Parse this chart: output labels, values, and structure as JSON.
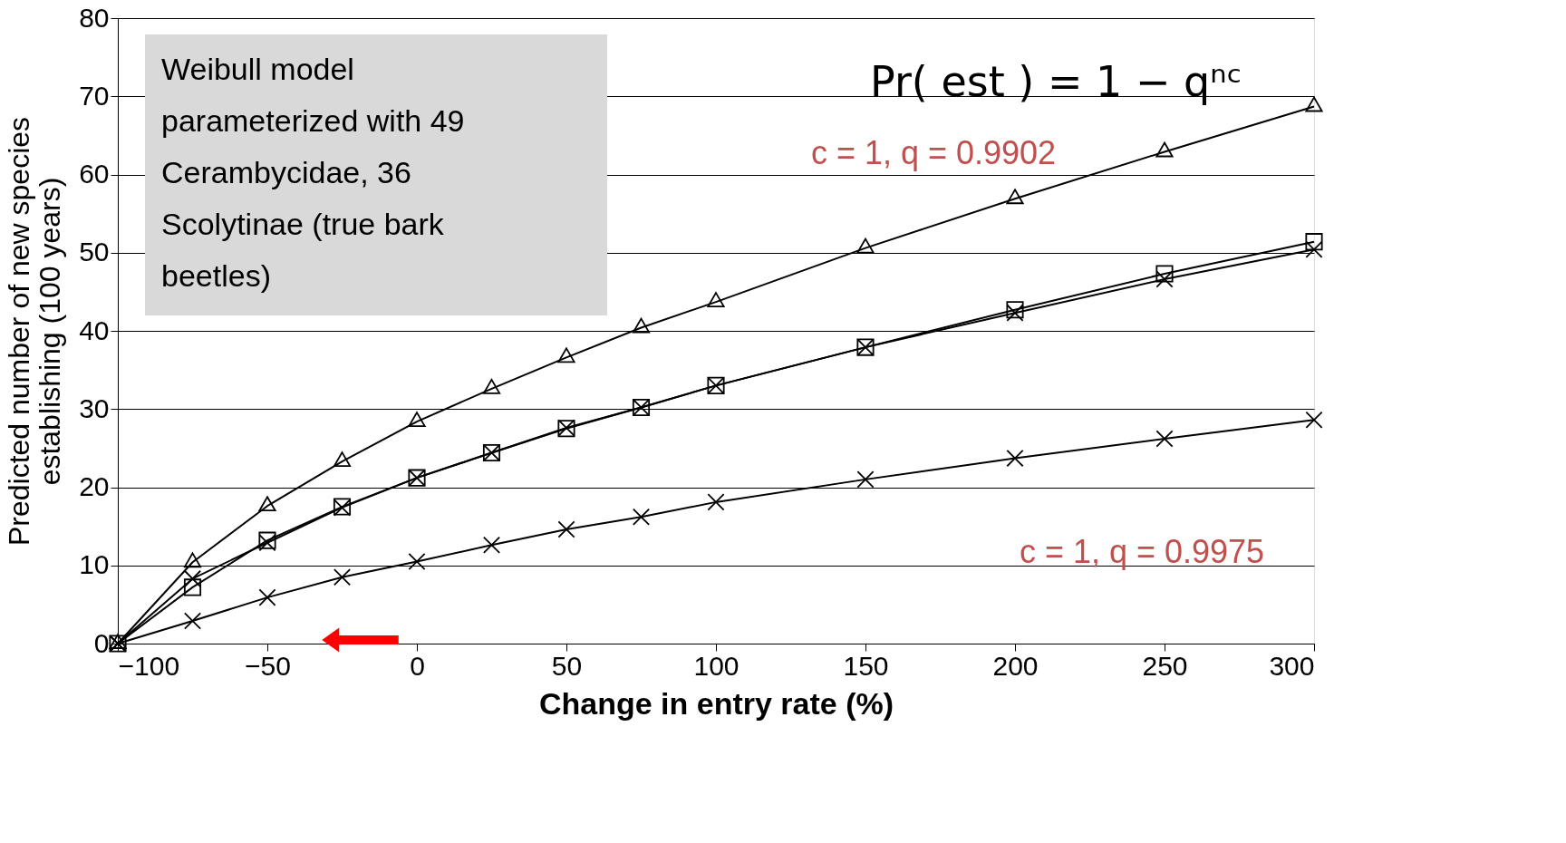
{
  "chart_data": {
    "type": "line",
    "xlabel": "Change in entry rate (%)",
    "ylabel": "Predicted number of new species\nestablishing (100 years)",
    "x": [
      -100,
      -75,
      -50,
      -25,
      0,
      25,
      50,
      75,
      100,
      150,
      200,
      250,
      300
    ],
    "series": [
      {
        "color": "#000000",
        "marker": "triangle",
        "values": [
          0,
          10.4,
          17.6,
          23.3,
          28.4,
          32.6,
          36.6,
          40.4,
          43.7,
          50.6,
          56.9,
          62.9,
          68.7
        ]
      },
      {
        "color": "#000000",
        "marker": "square",
        "values": [
          0,
          7.2,
          13.2,
          17.5,
          21.2,
          24.4,
          27.5,
          30.2,
          33.0,
          37.9,
          42.7,
          47.3,
          51.4
        ]
      },
      {
        "color": "#000000",
        "marker": "cross",
        "values": [
          0,
          8.3,
          12.9,
          17.4,
          21.2,
          24.4,
          27.6,
          30.2,
          33.0,
          37.9,
          42.3,
          46.6,
          50.4
        ]
      },
      {
        "color": "#000000",
        "marker": "cross",
        "values": [
          0,
          2.9,
          5.9,
          8.5,
          10.5,
          12.6,
          14.6,
          16.2,
          18.1,
          21.0,
          23.7,
          26.2,
          28.6
        ]
      }
    ],
    "xlim": [
      -100,
      300
    ],
    "xticks": [
      -100,
      -50,
      0,
      50,
      100,
      150,
      200,
      250,
      300
    ],
    "ylim": [
      0,
      80
    ],
    "yticks": [
      0,
      10,
      20,
      30,
      40,
      50,
      60,
      70,
      80
    ],
    "grid": "y",
    "annotations": [
      "Weibull model parameterized with 49 Cerambycidae, 36 Scolytinae (true bark beetles)",
      "Pr( est ) = 1 − qⁿᶜ",
      "c = 1, q = 0.9902",
      "c = 1, q = 0.9975"
    ]
  }
}
